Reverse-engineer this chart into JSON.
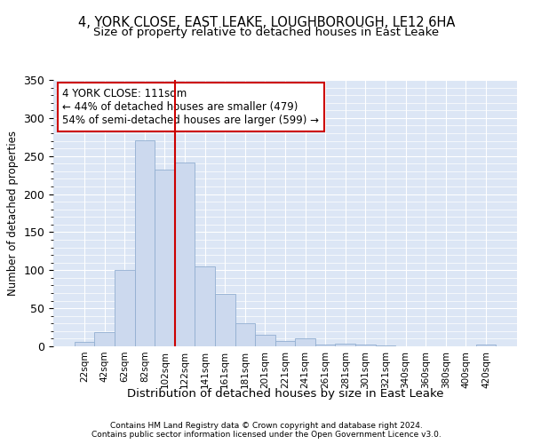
{
  "title1": "4, YORK CLOSE, EAST LEAKE, LOUGHBOROUGH, LE12 6HA",
  "title2": "Size of property relative to detached houses in East Leake",
  "xlabel": "Distribution of detached houses by size in East Leake",
  "ylabel": "Number of detached properties",
  "bar_labels": [
    "22sqm",
    "42sqm",
    "62sqm",
    "82sqm",
    "102sqm",
    "122sqm",
    "141sqm",
    "161sqm",
    "181sqm",
    "201sqm",
    "221sqm",
    "241sqm",
    "261sqm",
    "281sqm",
    "301sqm",
    "321sqm",
    "340sqm",
    "360sqm",
    "380sqm",
    "400sqm",
    "420sqm"
  ],
  "bar_values": [
    6,
    19,
    100,
    271,
    232,
    242,
    105,
    69,
    30,
    15,
    7,
    11,
    2,
    3,
    2,
    1,
    0,
    0,
    0,
    0,
    2
  ],
  "bar_color": "#ccd9ee",
  "bar_edge_color": "#92afd1",
  "vline_color": "#cc0000",
  "annotation_text": "4 YORK CLOSE: 111sqm\n← 44% of detached houses are smaller (479)\n54% of semi-detached houses are larger (599) →",
  "annotation_box_color": "#ffffff",
  "annotation_box_edge": "#cc0000",
  "ylim": [
    0,
    350
  ],
  "yticks": [
    0,
    50,
    100,
    150,
    200,
    250,
    300,
    350
  ],
  "footer1": "Contains HM Land Registry data © Crown copyright and database right 2024.",
  "footer2": "Contains public sector information licensed under the Open Government Licence v3.0.",
  "background_color": "#dce6f5",
  "grid_color": "#ffffff",
  "title1_fontsize": 10.5,
  "title2_fontsize": 9.5,
  "title1_weight": "normal"
}
